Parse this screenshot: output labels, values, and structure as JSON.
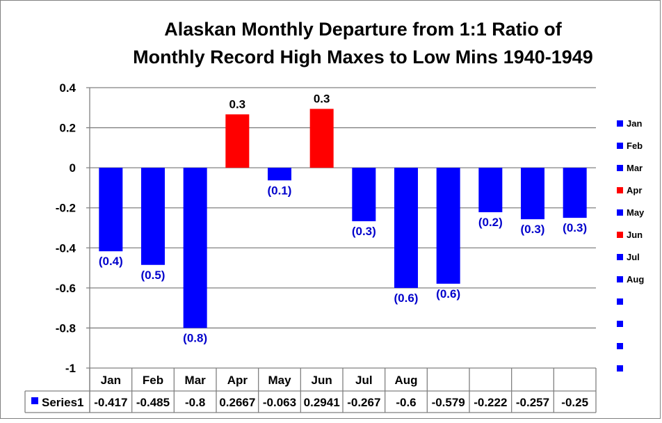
{
  "chart_data": {
    "type": "bar",
    "title_line1": "Alaskan Monthly Departure from 1:1 Ratio of",
    "title_line2": "Monthly Record High Maxes to Low Mins 1940-1949",
    "categories": [
      "Jan",
      "Feb",
      "Mar",
      "Apr",
      "May",
      "Jun",
      "Jul",
      "Aug",
      "",
      "",
      "",
      ""
    ],
    "series": [
      {
        "name": "Series1",
        "values": [
          -0.417,
          -0.485,
          -0.8,
          0.2667,
          -0.063,
          0.2941,
          -0.267,
          -0.6,
          -0.579,
          -0.222,
          -0.257,
          -0.25
        ],
        "table_values": [
          "-0.417",
          "-0.485",
          "-0.8",
          "0.2667",
          "-0.063",
          "0.2941",
          "-0.267",
          "-0.6",
          "-0.579",
          "-0.222",
          "-0.257",
          "-0.25"
        ],
        "data_labels": [
          "(0.4)",
          "(0.5)",
          "(0.8)",
          "0.3",
          "(0.1)",
          "0.3",
          "(0.3)",
          "(0.6)",
          "(0.6)",
          "(0.2)",
          "(0.3)",
          "(0.3)"
        ]
      }
    ],
    "ylim": [
      -1,
      0.4
    ],
    "yticks": [
      0.4,
      0.2,
      0,
      -0.2,
      -0.4,
      -0.6,
      -0.8,
      -1
    ],
    "ytick_labels": [
      "0.4",
      "0.2",
      "0",
      "-0.2",
      "-0.4",
      "-0.6",
      "-0.8",
      "-1"
    ],
    "legend": {
      "placement": "right",
      "entries": [
        "Jan",
        "Feb",
        "Mar",
        "Apr",
        "May",
        "Jun",
        "Jul",
        "Aug",
        "",
        "",
        "",
        ""
      ]
    },
    "grid": true,
    "data_table": true,
    "colors": {
      "negative": "#0000FF",
      "positive": "#FF0000",
      "label_negative": "#0000CC",
      "label_positive": "#000000",
      "grid": "#808080"
    }
  }
}
